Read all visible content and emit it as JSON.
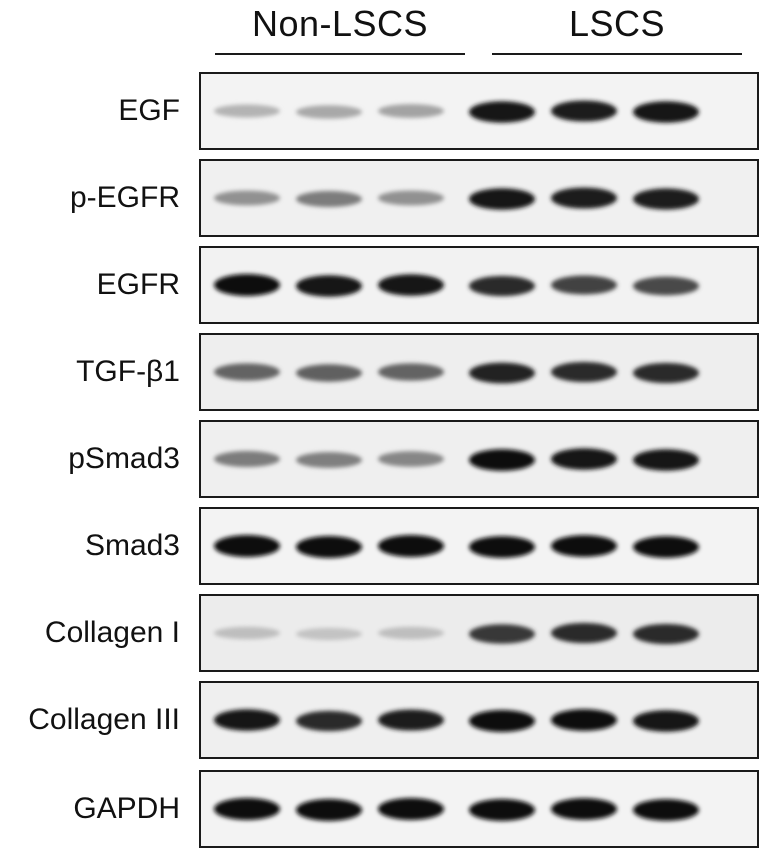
{
  "groups": [
    {
      "label": "Non-LSCS",
      "lanes": 3
    },
    {
      "label": "LSCS",
      "lanes": 3
    }
  ],
  "rows": [
    {
      "label": "EGF",
      "intensity": [
        0.25,
        0.3,
        0.32,
        0.95,
        0.92,
        0.95
      ],
      "bg": "#f3f3f3"
    },
    {
      "label": "p-EGFR",
      "intensity": [
        0.4,
        0.5,
        0.4,
        0.95,
        0.92,
        0.93
      ],
      "bg": "#f0f0f0"
    },
    {
      "label": "EGFR",
      "intensity": [
        1.0,
        0.95,
        0.95,
        0.85,
        0.75,
        0.72
      ],
      "bg": "#f2f2f2"
    },
    {
      "label": "TGF-β1",
      "intensity": [
        0.6,
        0.62,
        0.6,
        0.9,
        0.85,
        0.85
      ],
      "bg": "#eeeeee"
    },
    {
      "label": "pSmad3",
      "intensity": [
        0.5,
        0.48,
        0.45,
        0.98,
        0.95,
        0.95
      ],
      "bg": "#efefef"
    },
    {
      "label": "Smad3",
      "intensity": [
        1.0,
        1.0,
        1.0,
        0.98,
        0.98,
        0.97
      ],
      "bg": "#f3f3f3"
    },
    {
      "label": "Collagen I",
      "intensity": [
        0.2,
        0.18,
        0.2,
        0.8,
        0.85,
        0.85
      ],
      "bg": "#ececec"
    },
    {
      "label": "Collagen III",
      "intensity": [
        0.95,
        0.85,
        0.92,
        1.0,
        0.98,
        0.95
      ],
      "bg": "#efefef"
    },
    {
      "label": "GAPDH",
      "intensity": [
        1.0,
        1.0,
        1.0,
        1.0,
        0.98,
        0.98
      ],
      "bg": "#f3f3f3"
    }
  ]
}
